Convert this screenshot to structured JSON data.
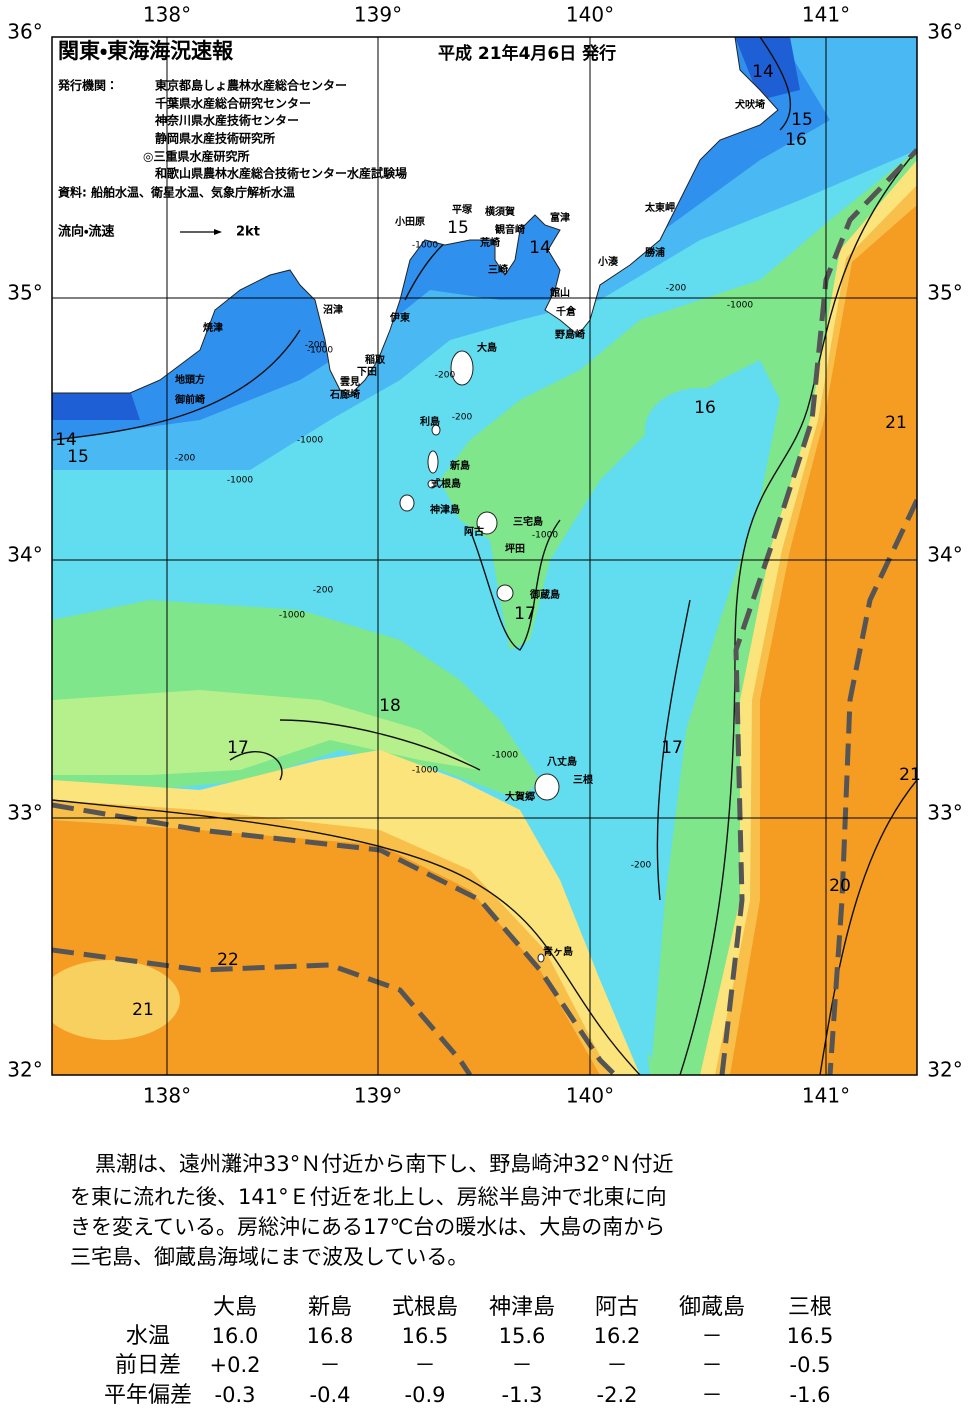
{
  "header": {
    "title": "関東・東海海況速報",
    "date": "平成 21年4月6日 発行",
    "issuer_label": "発行機関：",
    "issuers": [
      "東京都島しょ農林水産総合センター",
      "千葉県水産総合研究センター",
      "神奈川県水産技術センター",
      "静岡県水産技術研究所",
      "◎三重県水産研究所",
      "和歌山県農林水産総合技術センター水産試験場"
    ],
    "sources": "資料: 船舶水温、衛星水温、気象庁解析水温"
  },
  "legend": {
    "label": "流向・流速",
    "speed": "2kt"
  },
  "axes": {
    "lat": [
      "36°",
      "35°",
      "34°",
      "33°",
      "32°"
    ],
    "lon": [
      "138°",
      "139°",
      "140°",
      "141°"
    ]
  },
  "places": [
    "犬吠埼",
    "太東岬",
    "勝浦",
    "小湊",
    "富津",
    "横須賀",
    "平塚",
    "小田原",
    "観音崎",
    "荒崎",
    "三崎",
    "館山",
    "千倉",
    "野島崎",
    "伊東",
    "沼津",
    "焼津",
    "稲取",
    "下田",
    "雲見",
    "石廊埼",
    "地頭方",
    "御前崎",
    "大島",
    "利島",
    "新島",
    "式根島",
    "神津島",
    "三宅島",
    "阿古",
    "坪田",
    "御蔵島",
    "八丈島",
    "三根",
    "大賀郷",
    "青ヶ島"
  ],
  "isotherm_labels": [
    14,
    15,
    16,
    15,
    14,
    16,
    21,
    14,
    15,
    17,
    18,
    17,
    17,
    21,
    20,
    22,
    21
  ],
  "depth_labels": [
    "-1000",
    "-200",
    "-1000",
    "-200",
    "-200",
    "-1000",
    "-200",
    "-1000",
    "-200",
    "-1000",
    "-1000",
    "-200",
    "-1000",
    "-1000",
    "-1000",
    "-200"
  ],
  "description": [
    "黒潮は、遠州灘沖33°Ｎ付近から南下し、野島崎沖32°Ｎ付近",
    "を東に流れた後、141°Ｅ付近を北上し、房総半島沖で北東に向",
    "きを変えている。房総沖にある17℃台の暖水は、大島の南から",
    "三宅島、御蔵島海域にまで波及している。"
  ],
  "table": {
    "columns": [
      "大島",
      "新島",
      "式根島",
      "神津島",
      "阿古",
      "御蔵島",
      "三根"
    ],
    "rows": [
      [
        "水温",
        "16.0",
        "16.8",
        "16.5",
        "15.6",
        "16.2",
        "－",
        "16.5"
      ],
      [
        "前日差",
        "+0.2",
        "－",
        "－",
        "－",
        "－",
        "－",
        "-0.5"
      ],
      [
        "平年偏差",
        "-0.3",
        "-0.4",
        "-0.9",
        "-1.3",
        "-2.2",
        "－",
        "-1.6"
      ]
    ]
  }
}
